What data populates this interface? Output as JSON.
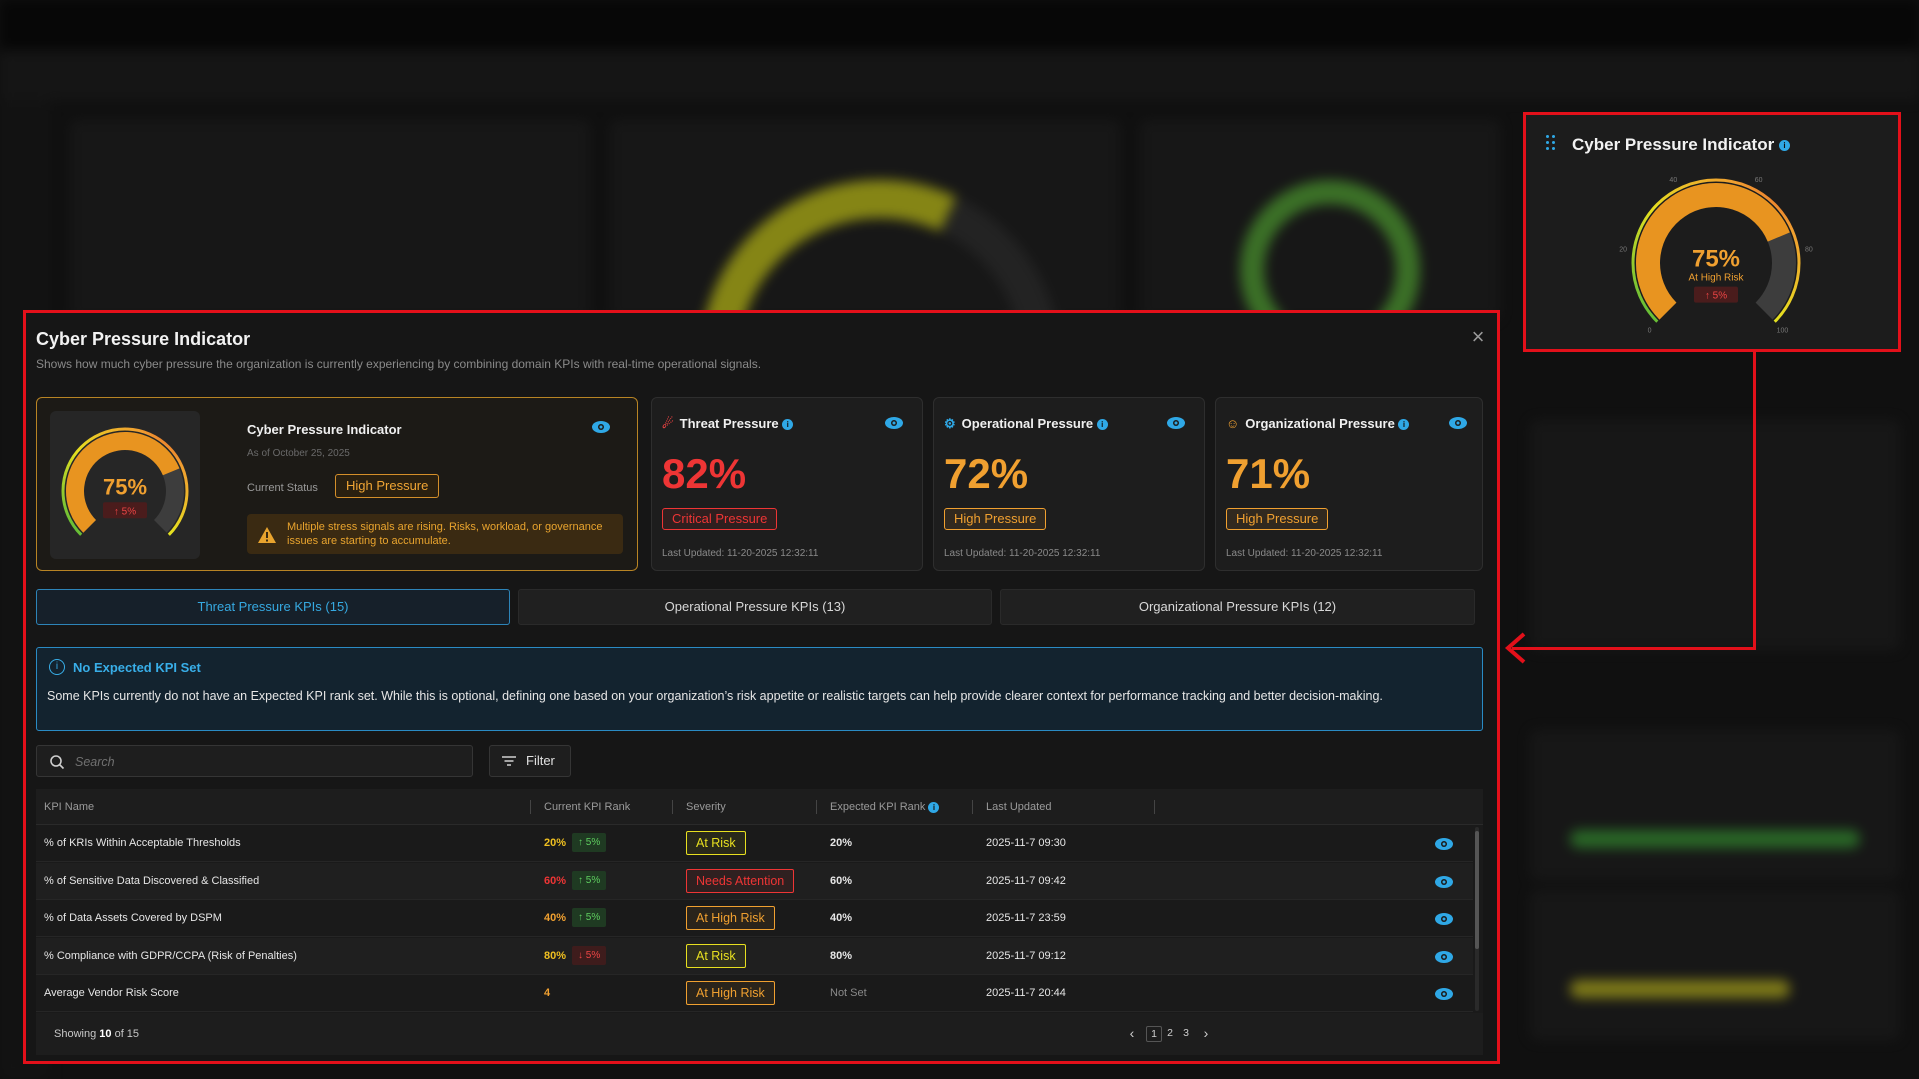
{
  "callout": {
    "title": "Cyber Pressure Indicator",
    "gauge": {
      "value": 75,
      "value_label": "75%",
      "status": "At High Risk",
      "delta": "5%",
      "ticks": [
        "0",
        "20",
        "40",
        "60",
        "80",
        "100"
      ]
    }
  },
  "modal": {
    "title": "Cyber Pressure Indicator",
    "subtitle": "Shows how much cyber pressure the organization is currently experiencing by combining domain KPIs with real-time operational signals.",
    "main_card": {
      "title": "Cyber Pressure Indicator",
      "as_of": "As of October 25, 2025",
      "status_label": "Current Status",
      "status": "High Pressure",
      "gauge_value": 75,
      "gauge_label": "75%",
      "gauge_delta": "5%",
      "warning": "Multiple stress signals are rising. Risks, workload, or governance issues are starting to accumulate."
    },
    "cards": [
      {
        "title": "Threat Pressure",
        "value": "82%",
        "badge": "Critical Pressure",
        "updated": "Last Updated: 11-20-2025 12:32:11",
        "color": "#ee3535"
      },
      {
        "title": "Operational Pressure",
        "value": "72%",
        "badge": "High Pressure",
        "updated": "Last Updated: 11-20-2025 12:32:11",
        "color": "#f0a030"
      },
      {
        "title": "Organizational Pressure",
        "value": "71%",
        "badge": "High Pressure",
        "updated": "Last Updated: 11-20-2025 12:32:11",
        "color": "#f0a030"
      }
    ],
    "tabs": [
      {
        "label": "Threat Pressure KPIs (15)",
        "active": true
      },
      {
        "label": "Operational Pressure KPIs (13)",
        "active": false
      },
      {
        "label": "Organizational Pressure KPIs (12)",
        "active": false
      }
    ],
    "notice": {
      "title": "No Expected KPI Set",
      "body": "Some KPIs currently do not have an Expected KPI rank set. While this is optional, defining one based on your organization’s risk appetite or realistic targets can help provide clearer context for performance tracking and better decision-making."
    },
    "search_placeholder": "Search",
    "filter_label": "Filter",
    "table": {
      "headers": [
        "KPI Name",
        "Current KPI Rank",
        "Severity",
        "Expected KPI Rank",
        "Last Updated"
      ],
      "rows": [
        {
          "name": "% of KRIs Within Acceptable Thresholds",
          "current": "20%",
          "current_color": "#f0c020",
          "delta": "5%",
          "delta_dir": "up",
          "severity": "At Risk",
          "sev_color": "#e8e020",
          "expected": "20%",
          "updated": "2025-11-7 09:30"
        },
        {
          "name": "% of Sensitive Data Discovered & Classified",
          "current": "60%",
          "current_color": "#ee3535",
          "delta": "5%",
          "delta_dir": "up",
          "severity": "Needs Attention",
          "sev_color": "#ee3535",
          "expected": "60%",
          "updated": "2025-11-7 09:42"
        },
        {
          "name": "% of Data Assets Covered by DSPM",
          "current": "40%",
          "current_color": "#f0a030",
          "delta": "5%",
          "delta_dir": "up",
          "severity": "At High Risk",
          "sev_color": "#f0a030",
          "expected": "40%",
          "updated": "2025-11-7 23:59"
        },
        {
          "name": "% Compliance with GDPR/CCPA (Risk of Penalties)",
          "current": "80%",
          "current_color": "#f0c020",
          "delta": "5%",
          "delta_dir": "down",
          "severity": "At Risk",
          "sev_color": "#e8e020",
          "expected": "80%",
          "updated": "2025-11-7 09:12"
        },
        {
          "name": "Average Vendor Risk Score",
          "current": "4",
          "current_color": "#f0a030",
          "delta": "",
          "delta_dir": "",
          "severity": "At High Risk",
          "sev_color": "#f0a030",
          "expected": "Not Set",
          "updated": "2025-11-7 20:44"
        }
      ],
      "showing_prefix": "Showing",
      "showing_count": "10",
      "showing_suffix": "of 15",
      "pages": [
        "1",
        "2",
        "3"
      ]
    }
  }
}
